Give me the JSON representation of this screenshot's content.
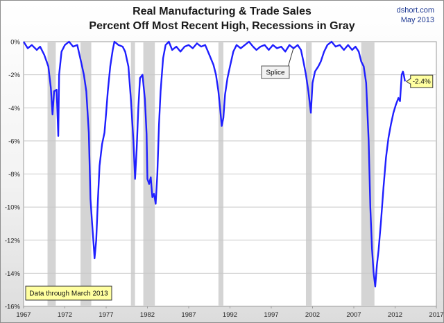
{
  "header": {
    "title_line1": "Real Manufacturing & Trade Sales",
    "title_line2": "Percent Off Most Recent High, Recessions in Gray",
    "site": "dshort.com",
    "date": "May 2013"
  },
  "colors": {
    "series": "#1f1fff",
    "recession": "#d4d4d4",
    "callout_fill": "#ffffa0",
    "credit": "#1f3a93"
  },
  "chart_data": {
    "type": "line",
    "title": "Real Manufacturing & Trade Sales — Percent Off Most Recent High, Recessions in Gray",
    "xlabel": "",
    "ylabel": "",
    "x_ticks": [
      "1967",
      "1972",
      "1977",
      "1982",
      "1987",
      "1992",
      "1997",
      "2002",
      "2007",
      "2012",
      "2017"
    ],
    "y_ticks": [
      "0%",
      "-2%",
      "-4%",
      "-6%",
      "-8%",
      "-10%",
      "-12%",
      "-14%",
      "-16%"
    ],
    "xlim": [
      1967,
      2017
    ],
    "ylim": [
      -16,
      0
    ],
    "grid": true,
    "recessions": [
      [
        1969.9,
        1970.9
      ],
      [
        1973.9,
        1975.2
      ],
      [
        1980.0,
        1980.5
      ],
      [
        1981.5,
        1982.9
      ],
      [
        1990.6,
        1991.2
      ],
      [
        2001.2,
        2001.9
      ],
      [
        2007.9,
        2009.5
      ]
    ],
    "series": [
      {
        "points": [
          [
            1967.0,
            0
          ],
          [
            1967.5,
            -0.4
          ],
          [
            1968.0,
            -0.2
          ],
          [
            1968.6,
            -0.5
          ],
          [
            1969.0,
            -0.3
          ],
          [
            1969.5,
            -0.8
          ],
          [
            1970.0,
            -1.5
          ],
          [
            1970.3,
            -2.8
          ],
          [
            1970.5,
            -4.4
          ],
          [
            1970.7,
            -3.0
          ],
          [
            1971.0,
            -2.9
          ],
          [
            1971.2,
            -5.7
          ],
          [
            1971.3,
            -2.0
          ],
          [
            1971.6,
            -0.6
          ],
          [
            1972.0,
            -0.2
          ],
          [
            1972.5,
            0
          ],
          [
            1973.0,
            -0.3
          ],
          [
            1973.5,
            -0.2
          ],
          [
            1974.0,
            -1.3
          ],
          [
            1974.3,
            -2.0
          ],
          [
            1974.6,
            -3.0
          ],
          [
            1974.9,
            -5.5
          ],
          [
            1975.1,
            -9.5
          ],
          [
            1975.3,
            -11.0
          ],
          [
            1975.5,
            -12.4
          ],
          [
            1975.6,
            -13.1
          ],
          [
            1975.8,
            -12.0
          ],
          [
            1976.0,
            -9.6
          ],
          [
            1976.2,
            -7.5
          ],
          [
            1976.5,
            -6.2
          ],
          [
            1976.8,
            -5.5
          ],
          [
            1977.0,
            -4.3
          ],
          [
            1977.2,
            -3.0
          ],
          [
            1977.5,
            -1.5
          ],
          [
            1977.8,
            -0.5
          ],
          [
            1978.0,
            0
          ],
          [
            1978.5,
            -0.2
          ],
          [
            1979.0,
            -0.3
          ],
          [
            1979.3,
            -0.6
          ],
          [
            1979.7,
            -1.5
          ],
          [
            1980.0,
            -3.5
          ],
          [
            1980.3,
            -6.0
          ],
          [
            1980.5,
            -8.3
          ],
          [
            1980.7,
            -6.5
          ],
          [
            1980.9,
            -4.0
          ],
          [
            1981.1,
            -2.2
          ],
          [
            1981.4,
            -2.0
          ],
          [
            1981.7,
            -3.5
          ],
          [
            1981.9,
            -5.6
          ],
          [
            1982.0,
            -8.3
          ],
          [
            1982.2,
            -8.6
          ],
          [
            1982.4,
            -8.2
          ],
          [
            1982.6,
            -9.4
          ],
          [
            1982.8,
            -9.2
          ],
          [
            1983.0,
            -9.8
          ],
          [
            1983.2,
            -8.0
          ],
          [
            1983.4,
            -5.0
          ],
          [
            1983.6,
            -3.0
          ],
          [
            1983.9,
            -1.0
          ],
          [
            1984.2,
            -0.2
          ],
          [
            1984.6,
            0
          ],
          [
            1985.0,
            -0.5
          ],
          [
            1985.5,
            -0.3
          ],
          [
            1986.0,
            -0.6
          ],
          [
            1986.5,
            -0.3
          ],
          [
            1987.0,
            -0.2
          ],
          [
            1987.5,
            -0.4
          ],
          [
            1988.0,
            -0.1
          ],
          [
            1988.5,
            -0.3
          ],
          [
            1989.0,
            -0.2
          ],
          [
            1989.5,
            -0.8
          ],
          [
            1990.0,
            -1.4
          ],
          [
            1990.3,
            -2.0
          ],
          [
            1990.6,
            -3.0
          ],
          [
            1990.8,
            -4.0
          ],
          [
            1991.0,
            -5.1
          ],
          [
            1991.2,
            -4.6
          ],
          [
            1991.4,
            -3.2
          ],
          [
            1991.7,
            -2.2
          ],
          [
            1992.0,
            -1.5
          ],
          [
            1992.4,
            -0.6
          ],
          [
            1992.8,
            -0.2
          ],
          [
            1993.3,
            -0.4
          ],
          [
            1993.8,
            -0.2
          ],
          [
            1994.3,
            0
          ],
          [
            1994.8,
            -0.3
          ],
          [
            1995.2,
            -0.5
          ],
          [
            1995.7,
            -0.3
          ],
          [
            1996.2,
            -0.2
          ],
          [
            1996.7,
            -0.5
          ],
          [
            1997.2,
            -0.2
          ],
          [
            1997.7,
            -0.4
          ],
          [
            1998.2,
            -0.3
          ],
          [
            1998.7,
            -0.6
          ],
          [
            1999.2,
            -0.2
          ],
          [
            1999.7,
            -0.4
          ],
          [
            2000.2,
            -0.2
          ],
          [
            2000.6,
            -0.5
          ],
          [
            2000.9,
            -1.2
          ],
          [
            2001.2,
            -2.0
          ],
          [
            2001.5,
            -3.0
          ],
          [
            2001.8,
            -4.3
          ],
          [
            2002.0,
            -2.5
          ],
          [
            2002.3,
            -1.8
          ],
          [
            2002.7,
            -1.5
          ],
          [
            2003.0,
            -1.2
          ],
          [
            2003.4,
            -0.6
          ],
          [
            2003.8,
            -0.2
          ],
          [
            2004.3,
            0
          ],
          [
            2004.8,
            -0.3
          ],
          [
            2005.3,
            -0.2
          ],
          [
            2005.8,
            -0.5
          ],
          [
            2006.3,
            -0.2
          ],
          [
            2006.8,
            -0.5
          ],
          [
            2007.2,
            -0.3
          ],
          [
            2007.6,
            -0.6
          ],
          [
            2007.9,
            -1.2
          ],
          [
            2008.2,
            -1.5
          ],
          [
            2008.5,
            -2.5
          ],
          [
            2008.8,
            -6.0
          ],
          [
            2009.0,
            -10.0
          ],
          [
            2009.2,
            -12.5
          ],
          [
            2009.4,
            -14.0
          ],
          [
            2009.6,
            -14.8
          ],
          [
            2009.8,
            -13.5
          ],
          [
            2010.0,
            -12.6
          ],
          [
            2010.3,
            -10.8
          ],
          [
            2010.6,
            -8.8
          ],
          [
            2010.9,
            -7.0
          ],
          [
            2011.2,
            -5.8
          ],
          [
            2011.5,
            -5.0
          ],
          [
            2011.8,
            -4.3
          ],
          [
            2012.1,
            -3.8
          ],
          [
            2012.4,
            -3.4
          ],
          [
            2012.6,
            -3.6
          ],
          [
            2012.8,
            -2.0
          ],
          [
            2012.95,
            -1.8
          ],
          [
            2013.05,
            -2.0
          ],
          [
            2013.2,
            -2.4
          ]
        ]
      }
    ],
    "annotations": [
      {
        "id": "splice",
        "text": "Splice",
        "x": 1997.5,
        "y": -0.4
      },
      {
        "id": "last-value",
        "text": "-2.4%",
        "x": 2013.2,
        "y": -2.4
      },
      {
        "id": "data-note",
        "text": "Data through March 2013"
      }
    ]
  }
}
